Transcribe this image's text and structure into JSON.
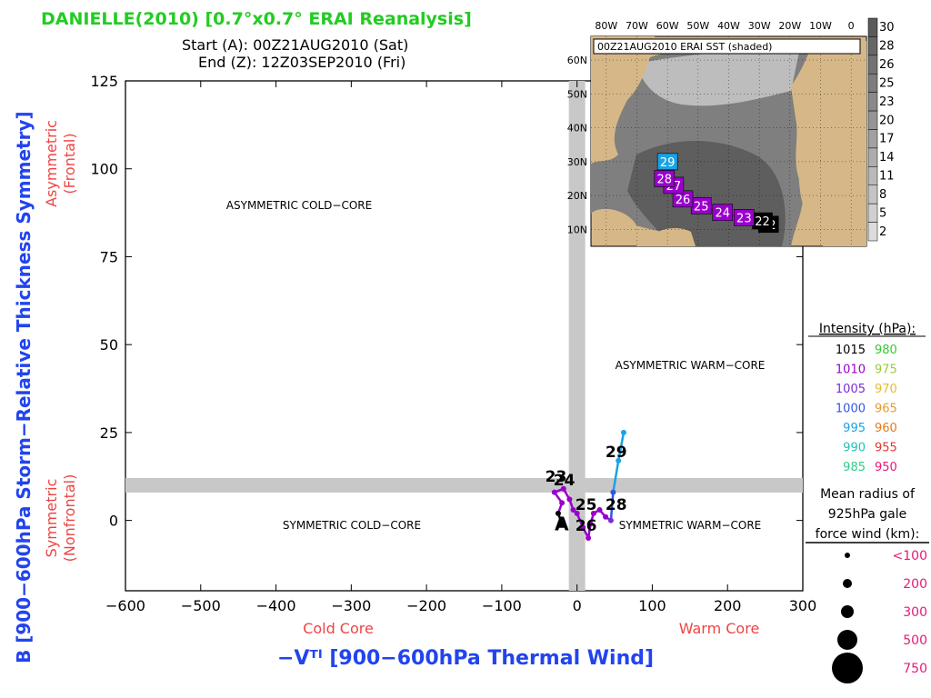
{
  "header": {
    "title": "DANIELLE(2010) [0.7°x0.7° ERAI Reanalysis]",
    "start": "Start (A): 00Z21AUG2010 (Sat)",
    "end": "End (Z): 12Z03SEP2010 (Fri)"
  },
  "axes": {
    "ylabel": "B [900−600hPa Storm−Relative Thickness Symmetry]",
    "xlabel": "−Vᵀˡ [900−600hPa Thermal Wind]",
    "y_top_label_1": "Asymmetric",
    "y_top_label_2": "(Frontal)",
    "y_bottom_label_1": "Symmetric",
    "y_bottom_label_2": "(Nonfrontal)",
    "x_left_label": "Cold Core",
    "x_right_label": "Warm Core"
  },
  "quadrants": {
    "asym_cold": "ASYMMETRIC COLD−CORE",
    "asym_warm": "ASYMMETRIC WARM−CORE",
    "sym_cold": "SYMMETRIC COLD−CORE",
    "sym_warm": "SYMMETRIC WARM−CORE"
  },
  "inset": {
    "label": "00Z21AUG2010 ERAI SST (shaded)",
    "lon_labels": [
      "80W",
      "70W",
      "60W",
      "50W",
      "40W",
      "30W",
      "20W",
      "10W",
      "0"
    ],
    "lat_labels": [
      "60N",
      "50N",
      "40N",
      "30N",
      "20N",
      "10N"
    ],
    "sst_colorbar": [
      "30",
      "28",
      "26",
      "25",
      "23",
      "20",
      "17",
      "14",
      "11",
      "8",
      "5",
      "2"
    ],
    "track": [
      {
        "day": "22",
        "lon": -27,
        "lat": 11.5,
        "color": "#000000"
      },
      {
        "day": "22",
        "lon": -29,
        "lat": 12.5,
        "color": "#000000"
      },
      {
        "day": "23",
        "lon": -35,
        "lat": 13.5,
        "color": "#9900cc"
      },
      {
        "day": "24",
        "lon": -42,
        "lat": 15,
        "color": "#9900cc"
      },
      {
        "day": "25",
        "lon": -49,
        "lat": 17,
        "color": "#9900cc"
      },
      {
        "day": "26",
        "lon": -55,
        "lat": 19,
        "color": "#9900cc"
      },
      {
        "day": "27",
        "lon": -58,
        "lat": 23,
        "color": "#9900cc"
      },
      {
        "day": "28",
        "lon": -61,
        "lat": 25,
        "color": "#9900cc"
      },
      {
        "day": "29",
        "lon": -60,
        "lat": 30,
        "color": "#19a3e6"
      }
    ]
  },
  "legend": {
    "intensity_title": "Intensity (hPa):",
    "intensity_rows": [
      {
        "left": "1015",
        "left_color": "#000000",
        "right": "980",
        "right_color": "#33cc33"
      },
      {
        "left": "1010",
        "left_color": "#9900cc",
        "right": "975",
        "right_color": "#99cc33"
      },
      {
        "left": "1005",
        "left_color": "#7a2cd6",
        "right": "970",
        "right_color": "#e6b833"
      },
      {
        "left": "1000",
        "left_color": "#3355e6",
        "right": "965",
        "right_color": "#e69933"
      },
      {
        "left": "995",
        "left_color": "#19a3e6",
        "right": "960",
        "right_color": "#e67a1a"
      },
      {
        "left": "990",
        "left_color": "#22c2b8",
        "right": "955",
        "right_color": "#e63333"
      },
      {
        "left": "985",
        "left_color": "#33cc8a",
        "right": "950",
        "right_color": "#e6197a"
      }
    ],
    "radius_title_1": "Mean radius of",
    "radius_title_2": "925hPa gale",
    "radius_title_3": "force wind (km):",
    "radius_rows": [
      {
        "label": "<100",
        "r": 3
      },
      {
        "label": "200",
        "r": 5
      },
      {
        "label": "300",
        "r": 7
      },
      {
        "label": "500",
        "r": 11
      },
      {
        "label": "750",
        "r": 17
      }
    ]
  },
  "chart_data": {
    "type": "line",
    "xlim": [
      -600,
      300
    ],
    "ylim": [
      -20,
      125
    ],
    "xticks": [
      -600,
      -500,
      -400,
      -300,
      -200,
      -100,
      0,
      100,
      200,
      300
    ],
    "yticks": [
      0,
      25,
      50,
      75,
      100,
      125
    ],
    "series": [
      {
        "points": [
          {
            "x": -20,
            "y": -1,
            "color": "#000000"
          },
          {
            "x": -25,
            "y": 2,
            "color": "#000000"
          },
          {
            "x": -20,
            "y": 5,
            "color": "#9900cc"
          },
          {
            "x": -30,
            "y": 8,
            "color": "#9900cc"
          },
          {
            "x": -18,
            "y": 9,
            "color": "#9900cc"
          },
          {
            "x": -10,
            "y": 6,
            "color": "#9900cc"
          },
          {
            "x": -5,
            "y": 3,
            "color": "#9900cc"
          },
          {
            "x": 0,
            "y": 2,
            "color": "#9900cc"
          },
          {
            "x": 8,
            "y": -2,
            "color": "#9900cc"
          },
          {
            "x": 15,
            "y": -5,
            "color": "#9900cc"
          },
          {
            "x": 18,
            "y": -1,
            "color": "#9900cc"
          },
          {
            "x": 22,
            "y": 2,
            "color": "#9900cc"
          },
          {
            "x": 30,
            "y": 3,
            "color": "#9900cc"
          },
          {
            "x": 38,
            "y": 1,
            "color": "#9900cc"
          },
          {
            "x": 45,
            "y": 0,
            "color": "#7a2cd6"
          },
          {
            "x": 48,
            "y": 8,
            "color": "#3355e6"
          },
          {
            "x": 55,
            "y": 17,
            "color": "#19a3e6"
          },
          {
            "x": 62,
            "y": 25,
            "color": "#19a3e6"
          }
        ]
      }
    ],
    "day_labels": [
      {
        "text": "23",
        "x": -28,
        "y": 11
      },
      {
        "text": "24",
        "x": -17,
        "y": 10
      },
      {
        "text": "25",
        "x": 12,
        "y": 3
      },
      {
        "text": "26",
        "x": 12,
        "y": -3
      },
      {
        "text": "28",
        "x": 52,
        "y": 3
      },
      {
        "text": "29",
        "x": 52,
        "y": 18
      }
    ]
  }
}
